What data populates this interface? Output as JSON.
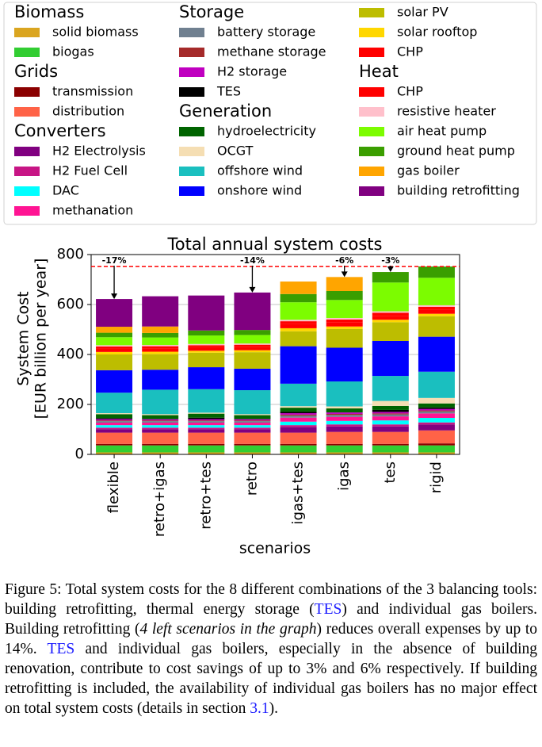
{
  "chart_data": {
    "type": "stacked_bar",
    "title": "Total annual system costs",
    "ylabel": [
      "System Cost",
      "[EUR billion per year]"
    ],
    "xlabel": "scenarios",
    "categories": [
      "flexible",
      "retro+igas",
      "retro+tes",
      "retro",
      "igas+tes",
      "igas",
      "tes",
      "rigid"
    ],
    "ylim": [
      0,
      800
    ],
    "yticks": [
      0,
      200,
      400,
      600,
      800
    ],
    "grid": true,
    "reference_line": {
      "value": 752,
      "color": "#ff0000"
    },
    "annotations": [
      {
        "label": "-17%",
        "x": "flexible"
      },
      {
        "label": "-14%",
        "x": "retro"
      },
      {
        "label": "-6%",
        "x": "igas"
      },
      {
        "label": "-3%",
        "x": "tes"
      }
    ],
    "series_groups": [
      {
        "name": "Biomass",
        "series": [
          {
            "name": "solid biomass",
            "color": "#daa520",
            "values": [
              8,
              8,
              8,
              8,
              8,
              8,
              8,
              8
            ]
          },
          {
            "name": "biogas",
            "color": "#32cd32",
            "values": [
              28,
              28,
              28,
              28,
              28,
              28,
              28,
              28
            ]
          }
        ]
      },
      {
        "name": "Grids",
        "series": [
          {
            "name": "transmission",
            "color": "#8b0000",
            "values": [
              6,
              6,
              6,
              6,
              6,
              6,
              6,
              8
            ]
          },
          {
            "name": "distribution",
            "color": "#ff6347",
            "values": [
              45,
              45,
              45,
              45,
              45,
              48,
              48,
              52
            ]
          }
        ]
      },
      {
        "name": "Converters",
        "series": [
          {
            "name": "H2 Electrolysis",
            "color": "#800080",
            "values": [
              14,
              14,
              14,
              14,
              22,
              22,
              22,
              24
            ]
          },
          {
            "name": "H2 Fuel Cell",
            "color": "#c71585",
            "values": [
              6,
              6,
              6,
              6,
              8,
              8,
              8,
              8
            ]
          },
          {
            "name": "DAC",
            "color": "#00ffff",
            "values": [
              10,
              10,
              10,
              10,
              14,
              14,
              16,
              18
            ]
          },
          {
            "name": "methanation",
            "color": "#ff1493",
            "values": [
              10,
              10,
              10,
              10,
              16,
              16,
              16,
              18
            ]
          }
        ]
      },
      {
        "name": "Storage",
        "series": [
          {
            "name": "battery storage",
            "color": "#708090",
            "values": [
              6,
              6,
              6,
              6,
              8,
              8,
              8,
              8
            ]
          },
          {
            "name": "methane storage",
            "color": "#a52a2a",
            "values": [
              3,
              3,
              3,
              3,
              4,
              4,
              4,
              4
            ]
          },
          {
            "name": "H2 storage",
            "color": "#c000c0",
            "values": [
              5,
              5,
              5,
              5,
              6,
              6,
              6,
              6
            ]
          },
          {
            "name": "TES",
            "color": "#000000",
            "values": [
              4,
              0,
              6,
              0,
              6,
              0,
              8,
              6
            ]
          }
        ]
      },
      {
        "name": "Generation",
        "series": [
          {
            "name": "hydroelectricity",
            "color": "#006400",
            "values": [
              16,
              16,
              16,
              16,
              16,
              16,
              16,
              16
            ]
          },
          {
            "name": "OCGT",
            "color": "#f5deb3",
            "values": [
              4,
              4,
              4,
              4,
              6,
              8,
              20,
              22
            ]
          },
          {
            "name": "offshore wind",
            "color": "#1abfbf",
            "values": [
              82,
              98,
              94,
              96,
              90,
              100,
              100,
              105
            ]
          },
          {
            "name": "onshore wind",
            "color": "#0000ff",
            "values": [
              90,
              80,
              88,
              86,
              150,
              135,
              140,
              140
            ]
          },
          {
            "name": "solar PV",
            "color": "#bdbd00",
            "values": [
              63,
              62,
              58,
              66,
              60,
              75,
              75,
              82
            ]
          },
          {
            "name": "solar rooftop",
            "color": "#ffd700",
            "values": [
              10,
              10,
              8,
              8,
              12,
              10,
              10,
              10
            ]
          },
          {
            "name": "CHP",
            "color": "#ff0000",
            "values": [
              14,
              14,
              14,
              14,
              16,
              16,
              16,
              16
            ]
          }
        ]
      },
      {
        "name": "Heat",
        "series": [
          {
            "name": "CHP",
            "color": "#ff0000",
            "values": [
              8,
              8,
              8,
              8,
              12,
              12,
              12,
              12
            ]
          },
          {
            "name": "resistive heater",
            "color": "#ffc0cb",
            "values": [
              5,
              5,
              5,
              5,
              6,
              6,
              6,
              6
            ]
          },
          {
            "name": "air heat pump",
            "color": "#7cfc00",
            "values": [
              32,
              30,
              34,
              34,
              70,
              72,
              115,
              110
            ]
          },
          {
            "name": "ground heat pump",
            "color": "#3a9e00",
            "values": [
              18,
              18,
              20,
              20,
              33,
              36,
              42,
              45
            ]
          },
          {
            "name": "gas boiler",
            "color": "#ffa500",
            "values": [
              24,
              26,
              0,
              0,
              50,
              56,
              0,
              0
            ]
          },
          {
            "name": "building retrofitting",
            "color": "#800080",
            "values": [
              111,
              121,
              140,
              150,
              0,
              0,
              0,
              0
            ]
          }
        ]
      }
    ]
  },
  "caption": [
    "Figure 5: Total system costs for the 8 different combinations of the 3 balancing tools: building retrofitting, thermal energy storage (",
    "TES",
    ") and individual gas boilers. Building retrofitting (",
    "4 left scenarios in the graph",
    ") reduces overall expenses by up to 14%. ",
    "TES",
    " and individual gas boilers, especially in the absence of building renovation, contribute to cost savings of up to 3% and 6% respectively. If building retrofitting is included, the availability of individual gas boilers has no major effect on total system costs (details in section ",
    "3.1",
    ")."
  ]
}
